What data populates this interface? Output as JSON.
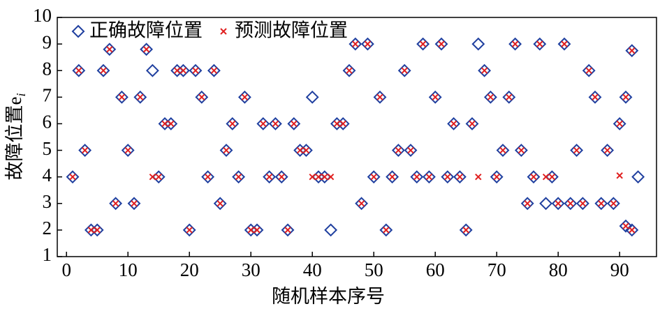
{
  "chart_data": {
    "type": "scatter",
    "xlabel": "随机样本序号",
    "ylabel": "故障位置e",
    "ylabel_subscript": "i",
    "xlim": [
      -1.5,
      96
    ],
    "ylim": [
      1,
      10
    ],
    "xticks": [
      0,
      10,
      20,
      30,
      40,
      50,
      60,
      70,
      80,
      90
    ],
    "yticks": [
      1,
      2,
      3,
      4,
      5,
      6,
      7,
      8,
      9,
      10
    ],
    "legend": "upper left",
    "series": [
      {
        "name": "正确故障位置",
        "marker": "diamond",
        "color": "#1f3f9f",
        "x": [
          1,
          2,
          3,
          4,
          5,
          6,
          7,
          8,
          9,
          10,
          11,
          12,
          13,
          14,
          15,
          16,
          17,
          18,
          19,
          20,
          21,
          22,
          23,
          24,
          25,
          26,
          27,
          28,
          29,
          30,
          31,
          32,
          33,
          34,
          35,
          36,
          37,
          38,
          39,
          40,
          41,
          42,
          43,
          44,
          45,
          46,
          47,
          48,
          49,
          50,
          51,
          52,
          53,
          54,
          55,
          56,
          57,
          58,
          59,
          60,
          61,
          62,
          63,
          64,
          65,
          66,
          67,
          68,
          69,
          70,
          71,
          72,
          73,
          74,
          75,
          76,
          77,
          78,
          79,
          80,
          81,
          82,
          83,
          84,
          85,
          86,
          87,
          88,
          89,
          90,
          91,
          91,
          92,
          92,
          93
        ],
        "values": [
          4,
          8,
          5,
          2,
          2,
          8,
          8.8,
          3,
          7,
          5,
          3,
          7,
          8.8,
          8,
          4,
          6,
          6,
          8,
          8,
          2,
          8,
          7,
          4,
          8,
          3,
          5,
          6,
          4,
          7,
          2,
          2,
          6,
          4,
          6,
          4,
          2,
          6,
          5,
          5,
          7,
          4,
          4,
          2,
          6,
          6,
          8,
          9,
          3,
          9,
          4,
          7,
          2,
          4,
          5,
          8,
          5,
          4,
          9,
          4,
          7,
          9,
          4,
          6,
          4,
          2,
          6,
          9,
          8,
          7,
          4,
          5,
          7,
          9,
          5,
          3,
          4,
          9,
          3,
          4,
          3,
          9,
          3,
          5,
          3,
          8,
          7,
          3,
          5,
          3,
          6,
          7,
          2.15,
          2,
          8.75,
          4
        ]
      },
      {
        "name": "预测故障位置",
        "marker": "x",
        "color": "#e02020",
        "x": [
          1,
          2,
          3,
          4,
          5,
          6,
          7,
          8,
          9,
          10,
          11,
          12,
          13,
          14,
          15,
          16,
          17,
          18,
          19,
          20,
          21,
          22,
          23,
          24,
          25,
          26,
          27,
          28,
          29,
          30,
          31,
          32,
          33,
          34,
          35,
          36,
          37,
          38,
          39,
          40,
          41,
          42,
          43,
          44,
          45,
          46,
          47,
          48,
          49,
          50,
          51,
          52,
          53,
          54,
          55,
          56,
          57,
          58,
          59,
          60,
          61,
          62,
          63,
          64,
          65,
          66,
          67,
          68,
          69,
          70,
          71,
          72,
          73,
          74,
          75,
          76,
          77,
          78,
          79,
          80,
          81,
          82,
          83,
          84,
          85,
          86,
          87,
          88,
          89,
          90,
          90,
          91,
          91,
          92,
          92
        ],
        "values": [
          4,
          8,
          5,
          2,
          2,
          8,
          8.8,
          3,
          7,
          5,
          3,
          7,
          8.8,
          4,
          4,
          6,
          6,
          8,
          8,
          2,
          8,
          7,
          4,
          8,
          3,
          5,
          6,
          4,
          7,
          2,
          2,
          6,
          4,
          6,
          4,
          2,
          6,
          5,
          5,
          4,
          4,
          4,
          4,
          6,
          6,
          8,
          9,
          3,
          9,
          4,
          7,
          2,
          4,
          5,
          8,
          5,
          4,
          9,
          4,
          7,
          9,
          4,
          6,
          4,
          2,
          6,
          4,
          8,
          7,
          4,
          5,
          7,
          9,
          5,
          3,
          4,
          9,
          4,
          4,
          3,
          9,
          3,
          5,
          3,
          8,
          7,
          3,
          5,
          3,
          6,
          4.05,
          7,
          2.15,
          2,
          8.75
        ]
      }
    ]
  }
}
